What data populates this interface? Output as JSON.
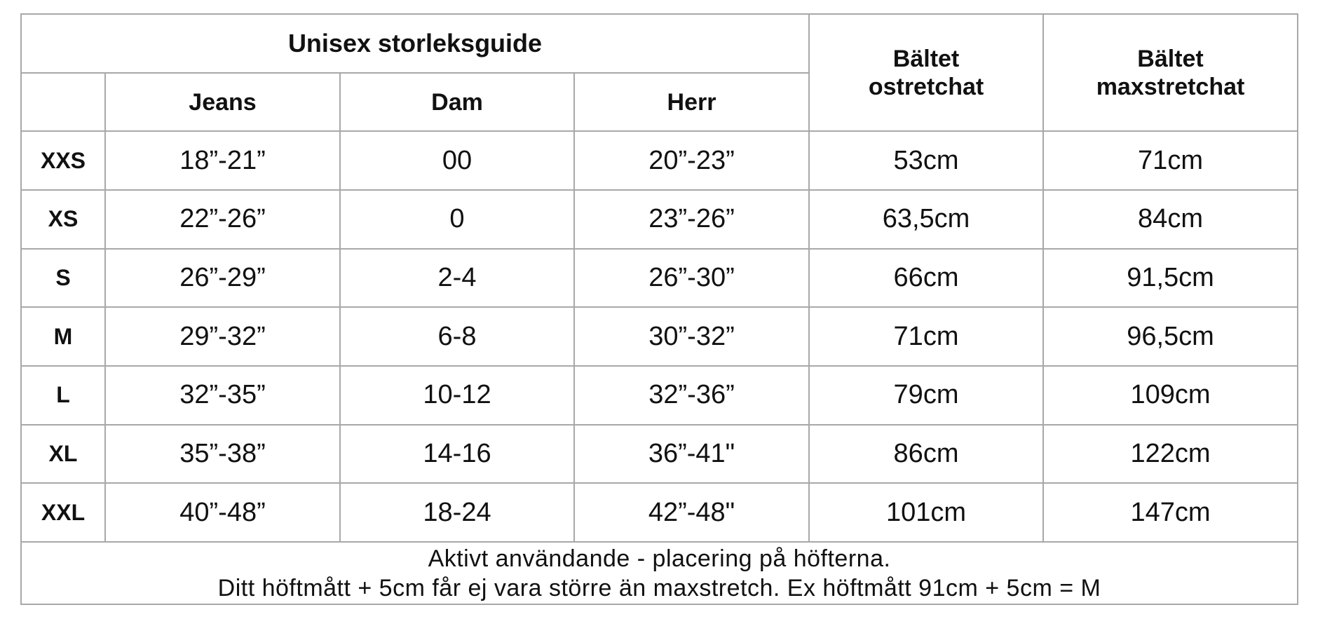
{
  "title": "Unisex storleksguide",
  "columns": {
    "jeans": "Jeans",
    "dam": "Dam",
    "herr": "Herr",
    "unstretched": [
      "Bältet",
      "ostretchat"
    ],
    "maxstretched": [
      "Bältet",
      "maxstretchat"
    ]
  },
  "rows": [
    {
      "size": "XXS",
      "jeans": "18”-21”",
      "dam": "00",
      "herr": "20”-23”",
      "unstretched": "53cm",
      "maxstretched": "71cm"
    },
    {
      "size": "XS",
      "jeans": "22”-26”",
      "dam": "0",
      "herr": "23”-26”",
      "unstretched": "63,5cm",
      "maxstretched": "84cm"
    },
    {
      "size": "S",
      "jeans": "26”-29”",
      "dam": "2-4",
      "herr": "26”-30”",
      "unstretched": "66cm",
      "maxstretched": "91,5cm"
    },
    {
      "size": "M",
      "jeans": "29”-32”",
      "dam": "6-8",
      "herr": "30”-32”",
      "unstretched": "71cm",
      "maxstretched": "96,5cm"
    },
    {
      "size": "L",
      "jeans": "32”-35”",
      "dam": "10-12",
      "herr": "32”-36”",
      "unstretched": "79cm",
      "maxstretched": "109cm"
    },
    {
      "size": "XL",
      "jeans": "35”-38”",
      "dam": "14-16",
      "herr": "36”-41\"",
      "unstretched": "86cm",
      "maxstretched": "122cm"
    },
    {
      "size": "XXL",
      "jeans": "40”-48”",
      "dam": "18-24",
      "herr": "42”-48\"",
      "unstretched": "101cm",
      "maxstretched": "147cm"
    }
  ],
  "footer": [
    "Aktivt användande - placering på höfterna.",
    "Ditt höftmått + 5cm får ej vara större än maxstretch. Ex höftmått 91cm + 5cm = M"
  ]
}
